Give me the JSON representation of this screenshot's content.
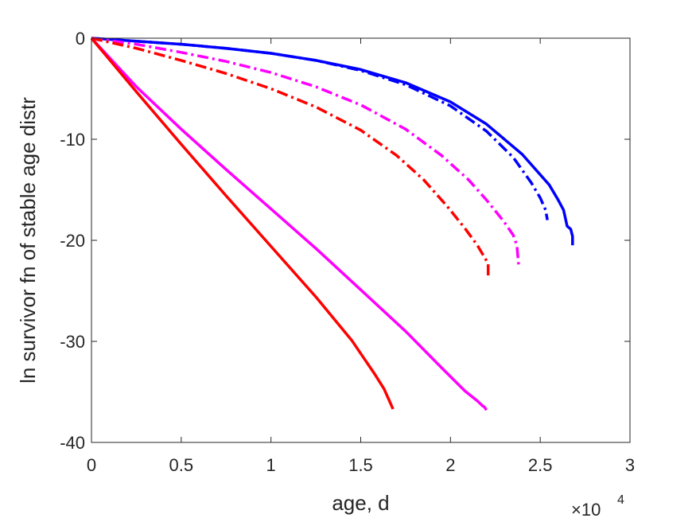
{
  "chart_data": {
    "type": "line",
    "xlabel": "age, d",
    "ylabel": "ln survivor fn of stable age distr",
    "x_multiplier": {
      "base": "×10",
      "exponent": "4"
    },
    "xlim": [
      0,
      30000
    ],
    "ylim": [
      -40,
      0
    ],
    "xticks": [
      0,
      5000,
      10000,
      15000,
      20000,
      25000,
      30000
    ],
    "xtick_labels": [
      "0",
      "0.5",
      "1",
      "1.5",
      "2",
      "2.5",
      "3"
    ],
    "yticks": [
      0,
      -10,
      -20,
      -30,
      -40
    ],
    "ytick_labels": [
      "0",
      "-10",
      "-20",
      "-30",
      "-40"
    ],
    "grid": false,
    "legend": "none",
    "series": [
      {
        "color": "#0000ff",
        "style": "solid",
        "x": [
          0,
          2500,
          5000,
          7500,
          10000,
          12500,
          15000,
          17500,
          20000,
          22000,
          24000,
          25500,
          26000,
          26300,
          26500,
          26700,
          26800,
          26800
        ],
        "y": [
          0,
          -0.3,
          -0.6,
          -1.0,
          -1.5,
          -2.2,
          -3.1,
          -4.4,
          -6.3,
          -8.5,
          -11.5,
          -14.5,
          -16.0,
          -17.0,
          -18.6,
          -18.9,
          -19.6,
          -20.5
        ]
      },
      {
        "color": "#0000ff",
        "style": "dashdot",
        "x": [
          0,
          2500,
          5000,
          7500,
          10000,
          12500,
          15000,
          17500,
          20000,
          22000,
          23500,
          24500,
          25000,
          25300,
          25400
        ],
        "y": [
          0,
          -0.3,
          -0.6,
          -1.0,
          -1.5,
          -2.2,
          -3.2,
          -4.6,
          -6.7,
          -9.2,
          -11.8,
          -14.3,
          -15.8,
          -17.0,
          -18.0
        ]
      },
      {
        "color": "#ff00ff",
        "style": "dashdot",
        "x": [
          0,
          2500,
          5000,
          7500,
          10000,
          12500,
          15000,
          17500,
          19500,
          21000,
          22000,
          23000,
          23500,
          23700,
          23800
        ],
        "y": [
          0,
          -0.6,
          -1.4,
          -2.3,
          -3.4,
          -4.8,
          -6.6,
          -9.0,
          -11.6,
          -14.0,
          -16.0,
          -18.2,
          -19.5,
          -20.5,
          -22.5
        ]
      },
      {
        "color": "#ff0000",
        "style": "dashdot",
        "x": [
          0,
          2500,
          5000,
          7500,
          10000,
          12500,
          15000,
          17000,
          18500,
          19800,
          20800,
          21500,
          21900,
          22100,
          22100
        ],
        "y": [
          0,
          -1.0,
          -2.2,
          -3.5,
          -5.0,
          -6.8,
          -9.1,
          -11.6,
          -14.0,
          -16.6,
          -18.8,
          -20.5,
          -21.7,
          -22.3,
          -23.5
        ]
      },
      {
        "color": "#ff00ff",
        "style": "solid",
        "x": [
          0,
          2500,
          5000,
          7500,
          10000,
          12500,
          15000,
          17500,
          19500,
          20800,
          21500,
          21800,
          21900,
          22000
        ],
        "y": [
          0,
          -4.8,
          -9.0,
          -13.0,
          -16.9,
          -20.8,
          -24.9,
          -29.0,
          -32.6,
          -34.9,
          -35.9,
          -36.4,
          -36.5,
          -36.8
        ]
      },
      {
        "color": "#ff0000",
        "style": "solid",
        "x": [
          0,
          2500,
          5000,
          7500,
          10000,
          12500,
          14500,
          15800,
          16300,
          16600,
          16800
        ],
        "y": [
          0,
          -5.3,
          -10.5,
          -15.6,
          -20.6,
          -25.6,
          -29.9,
          -33.3,
          -34.7,
          -35.9,
          -36.7
        ]
      }
    ]
  }
}
